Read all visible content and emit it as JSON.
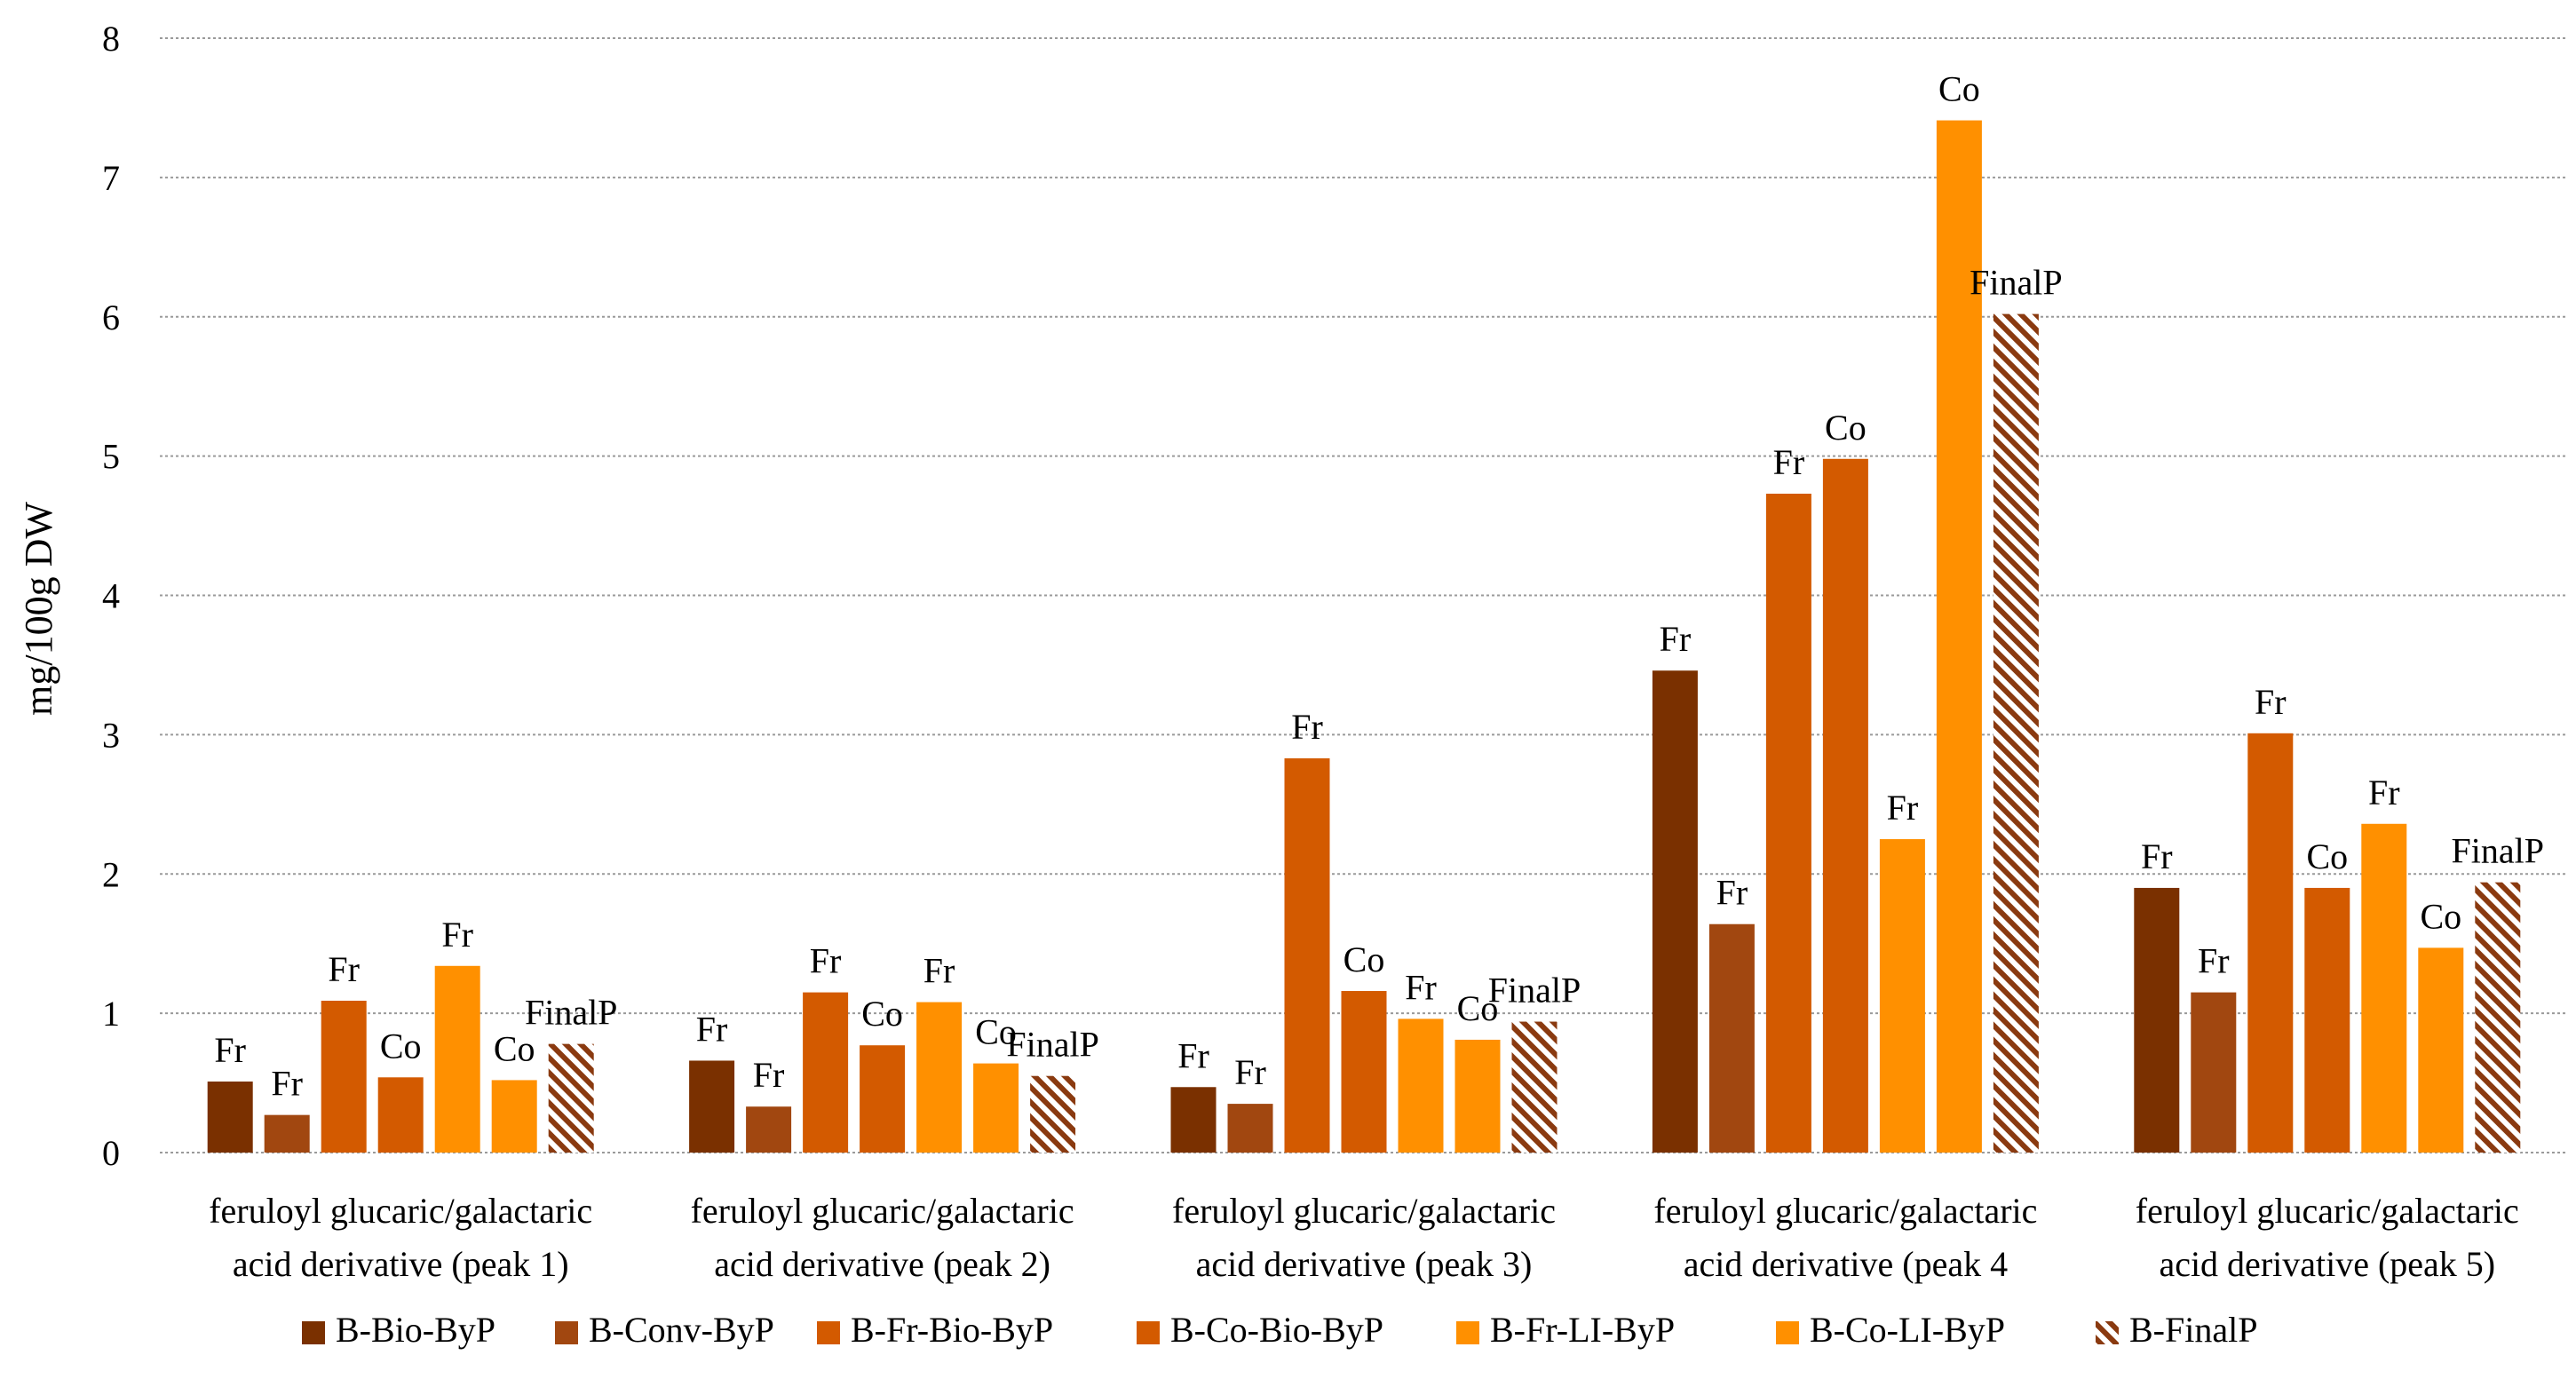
{
  "chart_data": {
    "type": "bar",
    "title": "",
    "xlabel": "",
    "ylabel": "mg/100g DW",
    "ylim": [
      0,
      8
    ],
    "yticks": [
      0,
      1,
      2,
      3,
      4,
      5,
      6,
      7,
      8
    ],
    "grid": true,
    "legend_position": "bottom",
    "categories": [
      [
        "feruloyl glucaric/galactaric",
        "acid derivative (peak 1)"
      ],
      [
        "feruloyl glucaric/galactaric",
        "acid derivative (peak 2)"
      ],
      [
        "feruloyl glucaric/galactaric",
        "acid derivative (peak 3)"
      ],
      [
        "feruloyl glucaric/galactaric",
        "acid derivative (peak 4"
      ],
      [
        "feruloyl glucaric/galactaric",
        "acid derivative (peak 5)"
      ]
    ],
    "series": [
      {
        "name": "B-Bio-ByP",
        "color": "#7a3000",
        "pattern": "solid",
        "values": [
          0.51,
          0.66,
          0.47,
          3.46,
          1.9
        ],
        "labels": [
          "Fr",
          "Fr",
          "Fr",
          "Fr",
          "Fr"
        ]
      },
      {
        "name": "B-Conv-ByP",
        "color": "#a14710",
        "pattern": "solid",
        "values": [
          0.27,
          0.33,
          0.35,
          1.64,
          1.15
        ],
        "labels": [
          "Fr",
          "Fr",
          "Fr",
          "Fr",
          "Fr"
        ]
      },
      {
        "name": "B-Fr-Bio-ByP",
        "color": "#d35a00",
        "pattern": "solid",
        "values": [
          1.09,
          1.15,
          2.83,
          4.73,
          3.01
        ],
        "labels": [
          "Fr",
          "Fr",
          "Fr",
          "Fr",
          "Fr"
        ]
      },
      {
        "name": "B-Co-Bio-ByP",
        "color": "#d35a00",
        "pattern": "solid",
        "values": [
          0.54,
          0.77,
          1.16,
          4.98,
          1.9
        ],
        "labels": [
          "Co",
          "Co",
          "Co",
          "Co",
          "Co"
        ]
      },
      {
        "name": "B-Fr-LI-ByP",
        "color": "#ff9000",
        "pattern": "solid",
        "values": [
          1.34,
          1.08,
          0.96,
          2.25,
          2.36
        ],
        "labels": [
          "Fr",
          "Fr",
          "Fr",
          "Fr",
          "Fr"
        ]
      },
      {
        "name": "B-Co-LI-ByP",
        "color": "#ff9000",
        "pattern": "solid",
        "values": [
          0.52,
          0.64,
          0.81,
          7.41,
          1.47
        ],
        "labels": [
          "Co",
          "Co",
          "Co",
          "Co",
          "Co"
        ]
      },
      {
        "name": "B-FinalP",
        "color": "#8a3a10",
        "pattern": "hatch",
        "values": [
          0.78,
          0.55,
          0.94,
          6.02,
          1.94
        ],
        "labels": [
          "FinalP",
          "FinalP",
          "FinalP",
          "FinalP",
          "FinalP"
        ]
      }
    ]
  }
}
